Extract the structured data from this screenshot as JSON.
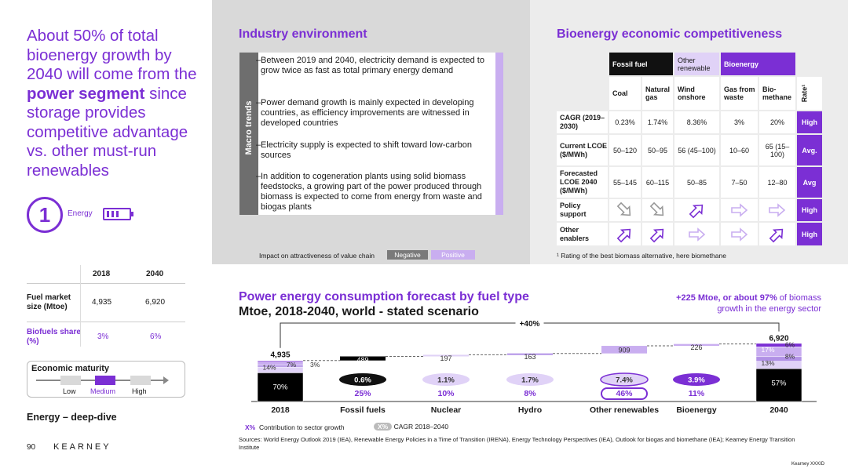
{
  "headline": {
    "part1": "About 50% of total bioenergy growth by 2040 will come from the ",
    "bold": "power segment",
    "part2": " since storage provides competitive advantage vs. other must-run renewables"
  },
  "badge": {
    "number": "1",
    "label": "Energy"
  },
  "left_table": {
    "columns": [
      "2018",
      "2040"
    ],
    "rows": [
      {
        "label": "Fuel market size (Mtoe)",
        "values": [
          "4,935",
          "6,920"
        ]
      },
      {
        "label": "Biofuels share (%)",
        "values": [
          "3%",
          "6%"
        ]
      }
    ]
  },
  "maturity": {
    "title": "Economic maturity",
    "levels": [
      "Low",
      "Medium",
      "High"
    ],
    "current": "Medium"
  },
  "deepdive": "Energy – deep-dive",
  "footer": {
    "page": "90",
    "brand": "KEARNEY"
  },
  "industry": {
    "title": "Industry environment",
    "side_label": "Macro trends",
    "bullets": [
      "Between 2019 and 2040, electricity demand is expected to grow twice as fast as total primary energy demand",
      "Power demand growth is mainly expected in developing countries, as efficiency improvements are witnessed in developed countries",
      "Electricity supply is expected to shift toward low-carbon sources",
      "In addition to cogeneration plants using solid biomass feedstocks, a growing part of the power produced through biomass is expected to come from energy from waste and biogas plants"
    ],
    "impact_label": "Impact on attractiveness of value chain",
    "legend_negative": "Negative",
    "legend_positive": "Positive"
  },
  "bio": {
    "title": "Bioenergy economic competitiveness",
    "groups": [
      "Fossil fuel",
      "Other renewable",
      "Bioenergy"
    ],
    "columns": [
      "Coal",
      "Natural gas",
      "Wind onshore",
      "Gas from waste",
      "Bio-methane"
    ],
    "rate_header": "Rate¹",
    "rows": [
      {
        "label": "CAGR (2019–2030)",
        "values": [
          "0.23%",
          "1.74%",
          "8.36%",
          "3%",
          "20%"
        ],
        "rate": "High"
      },
      {
        "label": "Current LCOE ($/MWh)",
        "values": [
          "50–120",
          "50–95",
          "56 (45–100)",
          "10–60",
          "65 (15–100)"
        ],
        "rate": "Avg."
      },
      {
        "label": "Forecasted LCOE 2040 ($/MWh)",
        "values": [
          "55–145",
          "60–115",
          "50–85",
          "7–50",
          "12–80"
        ],
        "rate": "Avg"
      },
      {
        "label": "Policy support",
        "arrows": [
          "down",
          "down",
          "up",
          "flat",
          "flat"
        ],
        "rate": "High"
      },
      {
        "label": "Other enablers",
        "arrows": [
          "up",
          "up",
          "flat",
          "flat",
          "up"
        ],
        "rate": "High"
      }
    ],
    "footnote": "¹ Rating of the best biomass alternative, here biomethane"
  },
  "forecast": {
    "title": "Power energy consumption forecast by fuel type",
    "subtitle": "Mtoe, 2018-2040, world - stated scenario",
    "note_bold": "+225 Mtoe, or about 97%",
    "note_rest": " of biomass growth in the energy sector",
    "growth_label": "+40%",
    "legend_contrib": "Contribution to sector growth",
    "legend_cagr": "CAGR 2018–2040",
    "legend_contrib_chip": "X%",
    "legend_cagr_chip": "X%",
    "sources": "Sources: World Energy Outlook 2019 (IEA), Renewable Energy Policies in a Time of Transition (IRENA), Energy Technology Perspectives (IEA), Outlook for biogas and biomethane (IEA); Kearney Energy Transition Institute",
    "footer_small": "Kearney XXXID"
  },
  "chart_data": {
    "type": "bar",
    "categories": [
      "2018",
      "Fossil fuels",
      "Nuclear",
      "Hydro",
      "Other renewables",
      "Bioenergy",
      "2040"
    ],
    "values": [
      4935,
      489,
      197,
      163,
      909,
      226,
      6920
    ],
    "totals": {
      "2018": "4,935",
      "2040": "6,920"
    },
    "increment_labels": [
      "489",
      "197",
      "163",
      "909",
      "226"
    ],
    "cagr": [
      "0.6%",
      "1.1%",
      "1.7%",
      "7.4%",
      "3.9%"
    ],
    "contribution": [
      "25%",
      "10%",
      "8%",
      "46%",
      "11%"
    ],
    "mix_2018": [
      {
        "name": "Fossil fuels",
        "share": "70%"
      },
      {
        "name": "Other renewables",
        "share": "7%"
      },
      {
        "name": "Bioenergy",
        "share": "3%"
      },
      {
        "name": "Nuclear",
        "share": "14%"
      },
      {
        "name": "Hydro",
        "share": "5%"
      }
    ],
    "mix_2040": [
      {
        "name": "Fossil fuels",
        "share": "57%"
      },
      {
        "name": "Nuclear",
        "share": "13%"
      },
      {
        "name": "Other renewables",
        "share": "17%"
      },
      {
        "name": "Hydro",
        "share": "8%"
      },
      {
        "name": "Bioenergy",
        "share": "6%"
      }
    ],
    "colors": {
      "fossil": "#000000",
      "renewable": "#c9aef0",
      "bio": "#7b2fd4",
      "nuclear": "#e0d2f7",
      "hydro": "#b191e6"
    }
  }
}
